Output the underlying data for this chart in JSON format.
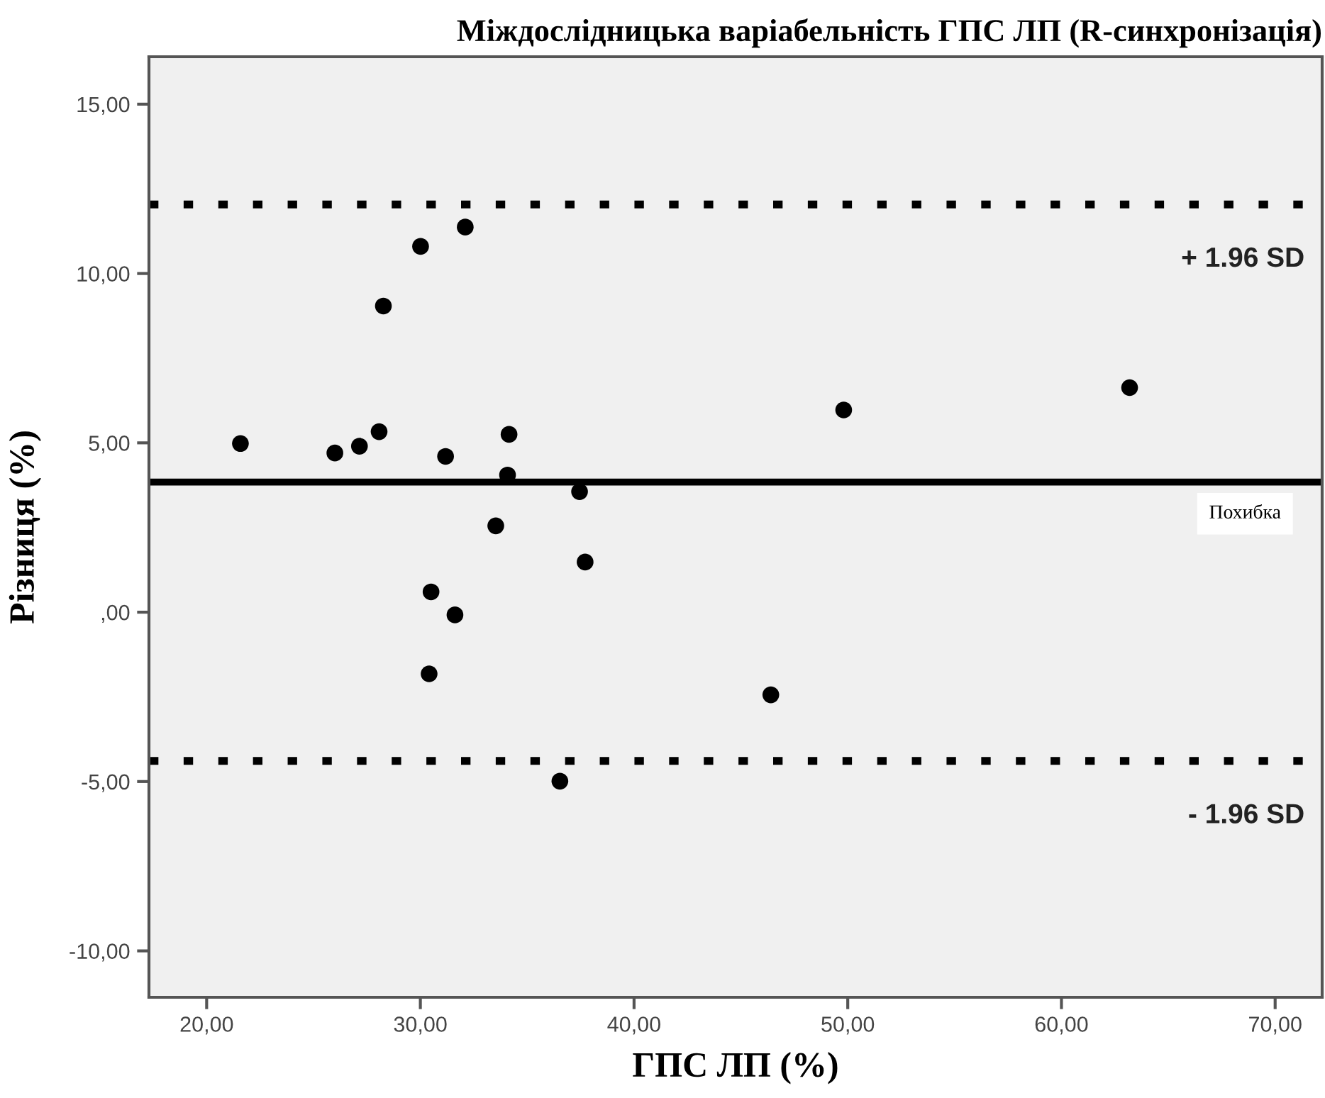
{
  "chart_data": {
    "type": "scatter",
    "title": "Міждослідницька варіабельність ГПС ЛП (R-синхронізація)",
    "xlabel": "ГПС ЛП (%)",
    "ylabel": "Різниця (%)",
    "x": [
      21.58,
      26.0,
      27.15,
      28.07,
      28.27,
      30.01,
      32.1,
      31.18,
      34.15,
      34.08,
      37.45,
      33.53,
      37.71,
      30.5,
      31.62,
      30.41,
      36.53,
      49.81,
      63.19,
      46.4
    ],
    "series": [
      {
        "color": "#000000",
        "values": [
          4.98,
          4.7,
          4.9,
          5.33,
          9.04,
          10.8,
          11.37,
          4.6,
          5.25,
          4.05,
          3.56,
          2.55,
          1.48,
          0.6,
          -0.08,
          -1.82,
          -4.99,
          5.97,
          6.63,
          -2.44
        ]
      }
    ],
    "marker": "circle",
    "grid": false,
    "xlim": [
      17.3,
      72.2
    ],
    "ylim": [
      -11.37,
      16.4
    ],
    "xticks": [
      {
        "value": 20,
        "label": "20,00"
      },
      {
        "value": 30,
        "label": "30,00"
      },
      {
        "value": 40,
        "label": "40,00"
      },
      {
        "value": 50,
        "label": "50,00"
      },
      {
        "value": 60,
        "label": "60,00"
      },
      {
        "value": 70,
        "label": "70,00"
      }
    ],
    "yticks": [
      {
        "value": -10,
        "label": "-10,00"
      },
      {
        "value": -5,
        "label": "-5,00"
      },
      {
        "value": 0,
        "label": ",00"
      },
      {
        "value": 5,
        "label": "5,00"
      },
      {
        "value": 10,
        "label": "10,00"
      },
      {
        "value": 15,
        "label": "15,00"
      }
    ],
    "ref_lines": [
      {
        "axis": "y",
        "value": 12.04,
        "label": "+ 1.96 SD",
        "color": "#000000",
        "line_style": "dotted"
      },
      {
        "axis": "y",
        "value": 3.84,
        "label": "Похибка",
        "color": "#000000",
        "line_style": "solid"
      },
      {
        "axis": "y",
        "value": -4.39,
        "label": "- 1.96 SD",
        "color": "#000000",
        "line_style": "dotted"
      }
    ]
  }
}
